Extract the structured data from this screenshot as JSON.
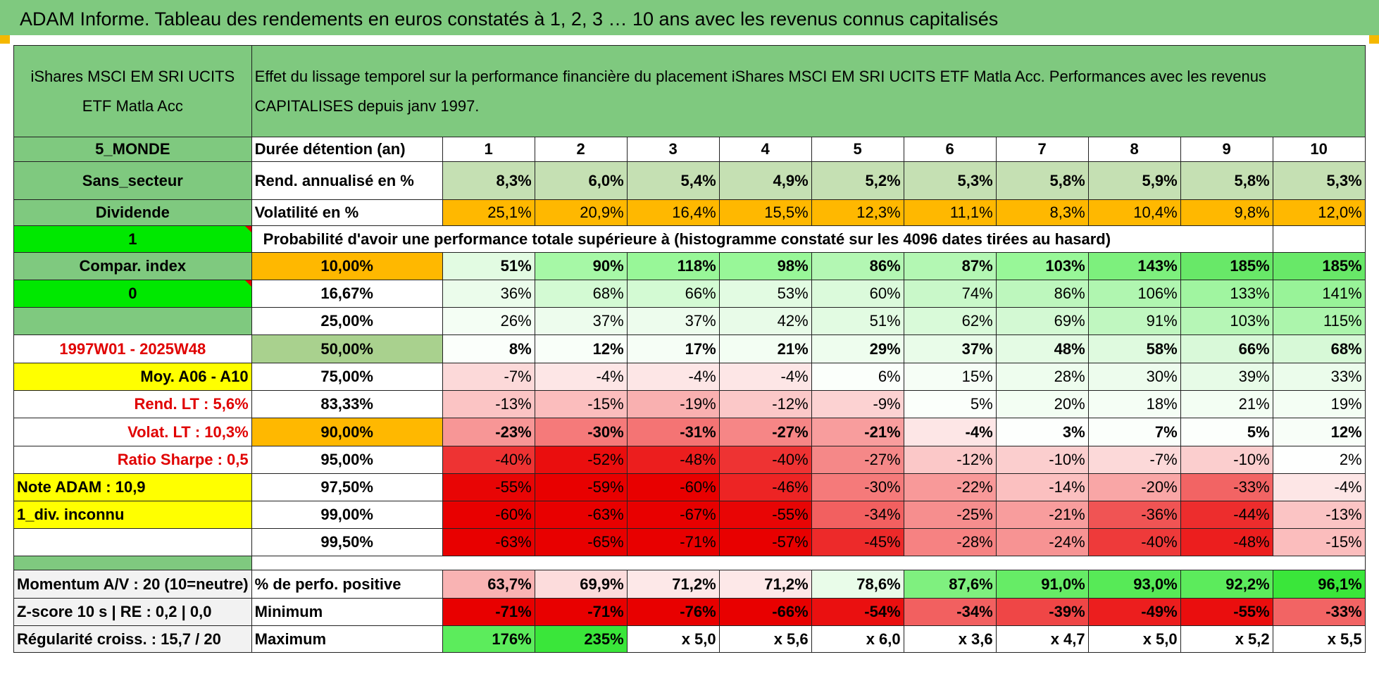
{
  "banner": "ADAM Informe. Tableau des rendements en euros constatés à 1, 2, 3 … 10 ans avec les revenus connus capitalisés",
  "fund_title": "iShares MSCI EM SRI UCITS ETF Matla Acc",
  "description": "Effet du lissage temporel sur la performance financière du placement iShares MSCI EM SRI UCITS ETF Matla Acc. Performances avec les revenus CAPITALISES depuis janv 1997.",
  "left": {
    "zone": "5_MONDE",
    "secteur": "Sans_secteur",
    "dividende": "Dividende",
    "div_value": "1",
    "compar": "Compar. index",
    "compar_value": "0",
    "period": "1997W01 - 2025W48",
    "moy": "Moy. A06 - A10",
    "rend_lt": "Rend. LT :    5,6%",
    "volat_lt": "Volat. LT :    10,3%",
    "sharpe": "Ratio Sharpe :    0,5",
    "note": "Note ADAM : 10,9",
    "div_inconnu": "1_div. inconnu",
    "momentum": "Momentum A/V : 20 (10=neutre)",
    "zscore": "Z-score 10 s | RE : 0,2 | 0,0",
    "regularite": "Régularité croiss. : 15,7 / 20"
  },
  "labels": {
    "duree": "Durée détention (an)",
    "rend": "Rend. annualisé en %",
    "vol": "Volatilité en %",
    "proba": "Probabilité d'avoir une performance totale supérieure à (histogramme constaté sur les 4096 dates tirées au hasard)",
    "positive": "% de perfo. positive",
    "minimum": "Minimum",
    "maximum": "Maximum"
  },
  "years": [
    "1",
    "2",
    "3",
    "4",
    "5",
    "6",
    "7",
    "8",
    "9",
    "10"
  ],
  "rend": [
    "8,3%",
    "6,0%",
    "5,4%",
    "4,9%",
    "5,2%",
    "5,3%",
    "5,8%",
    "5,9%",
    "5,8%",
    "5,3%"
  ],
  "vol": [
    "25,1%",
    "20,9%",
    "16,4%",
    "15,5%",
    "12,3%",
    "11,1%",
    "8,3%",
    "10,4%",
    "9,8%",
    "12,0%"
  ],
  "vol_colors": [
    "#ffb800",
    "#ffb800",
    "#ffb800",
    "#ffb800",
    "#ffb800",
    "#ffb800",
    "#ffb800",
    "#ffb800",
    "#ffb800",
    "#ffb800"
  ],
  "quantiles": [
    {
      "label": "10,00%",
      "values": [
        "51%",
        "90%",
        "118%",
        "98%",
        "86%",
        "87%",
        "103%",
        "143%",
        "185%",
        "185%"
      ],
      "colors": [
        "#e2fbe2",
        "#a6f8a6",
        "#98f798",
        "#98f798",
        "#b3f7b3",
        "#b3f7b3",
        "#98f798",
        "#7df07d",
        "#68e868",
        "#68e868"
      ]
    },
    {
      "label": "16,67%",
      "values": [
        "36%",
        "68%",
        "66%",
        "53%",
        "60%",
        "74%",
        "86%",
        "106%",
        "133%",
        "141%"
      ],
      "colors": [
        "#ebfceb",
        "#d3fad3",
        "#d3fad3",
        "#e2fbe2",
        "#dbfadb",
        "#c9f8c9",
        "#bdf7bd",
        "#b0f6b0",
        "#a0f5a0",
        "#98f398"
      ]
    },
    {
      "label": "25,00%",
      "values": [
        "26%",
        "37%",
        "37%",
        "42%",
        "51%",
        "62%",
        "69%",
        "91%",
        "103%",
        "115%"
      ],
      "colors": [
        "#f4fef4",
        "#edfced",
        "#edfced",
        "#e8fbe8",
        "#e2fbe2",
        "#d9fad9",
        "#d3f9d3",
        "#c0f7c0",
        "#b6f6b6",
        "#acf5ac"
      ]
    },
    {
      "label": "50,00%",
      "values": [
        "8%",
        "12%",
        "17%",
        "21%",
        "29%",
        "37%",
        "48%",
        "58%",
        "66%",
        "68%"
      ],
      "colors": [
        "#fbfffb",
        "#f9fff9",
        "#f6fef6",
        "#f3fef3",
        "#eefdee",
        "#e9fce9",
        "#e4fbe4",
        "#dffadf",
        "#d9f9d9",
        "#d7f9d7"
      ]
    },
    {
      "label": "75,00%",
      "values": [
        "-7%",
        "-4%",
        "-4%",
        "-4%",
        "6%",
        "15%",
        "28%",
        "30%",
        "39%",
        "33%"
      ],
      "colors": [
        "#fcd9d9",
        "#fde6e6",
        "#fde6e6",
        "#fde6e6",
        "#fbfffb",
        "#f6fef6",
        "#eefdee",
        "#edfced",
        "#e7fbe7",
        "#ebfceb"
      ]
    },
    {
      "label": "83,33%",
      "values": [
        "-13%",
        "-15%",
        "-19%",
        "-12%",
        "-9%",
        "5%",
        "20%",
        "18%",
        "21%",
        "19%"
      ],
      "colors": [
        "#fbc4c4",
        "#fbbdbd",
        "#f9b0b0",
        "#fbc8c8",
        "#fcd2d2",
        "#fbfffb",
        "#f3fef3",
        "#f5fef5",
        "#f3fef3",
        "#f4fef4"
      ]
    },
    {
      "label": "90,00%",
      "values": [
        "-23%",
        "-30%",
        "-31%",
        "-27%",
        "-21%",
        "-4%",
        "3%",
        "7%",
        "5%",
        "12%"
      ],
      "colors": [
        "#f79696",
        "#f57a7a",
        "#f47474",
        "#f68686",
        "#f89d9d",
        "#fde6e6",
        "#fdfffd",
        "#fbfffb",
        "#fcfffc",
        "#f8fef8"
      ]
    },
    {
      "label": "95,00%",
      "values": [
        "-40%",
        "-52%",
        "-48%",
        "-40%",
        "-27%",
        "-12%",
        "-10%",
        "-7%",
        "-10%",
        "2%"
      ],
      "colors": [
        "#ee3333",
        "#ea0e0e",
        "#ec1e1e",
        "#ee3333",
        "#f58888",
        "#fbc8c8",
        "#fbcece",
        "#fcd9d9",
        "#fbcece",
        "#fefffe"
      ]
    },
    {
      "label": "97,50%",
      "values": [
        "-55%",
        "-59%",
        "-60%",
        "-46%",
        "-30%",
        "-22%",
        "-14%",
        "-20%",
        "-33%",
        "-4%"
      ],
      "colors": [
        "#e80505",
        "#e80000",
        "#e80000",
        "#ed2424",
        "#f57a7a",
        "#f89999",
        "#fbc0c0",
        "#f9a6a6",
        "#f26464",
        "#fde6e6"
      ]
    },
    {
      "label": "99,00%",
      "values": [
        "-60%",
        "-63%",
        "-67%",
        "-55%",
        "-34%",
        "-25%",
        "-21%",
        "-36%",
        "-44%",
        "-13%"
      ],
      "colors": [
        "#e80000",
        "#e80000",
        "#e80000",
        "#e80505",
        "#f26060",
        "#f68e8e",
        "#f89d9d",
        "#f05454",
        "#ed2d2d",
        "#fbc4c4"
      ]
    },
    {
      "label": "99,50%",
      "values": [
        "-63%",
        "-65%",
        "-71%",
        "-57%",
        "-45%",
        "-28%",
        "-24%",
        "-40%",
        "-48%",
        "-15%"
      ],
      "colors": [
        "#e80000",
        "#e80000",
        "#e80000",
        "#e80000",
        "#ed2a2a",
        "#f68282",
        "#f79393",
        "#ee3a3a",
        "#ec1e1e",
        "#fbbdbd"
      ]
    }
  ],
  "positive": [
    "63,7%",
    "69,9%",
    "71,2%",
    "71,2%",
    "78,6%",
    "87,6%",
    "91,0%",
    "93,0%",
    "92,2%",
    "96,1%"
  ],
  "positive_colors": [
    "#f9b3b3",
    "#fcdcdc",
    "#fde8e8",
    "#fde8e8",
    "#e9fce9",
    "#7ff07f",
    "#66ec66",
    "#57ea57",
    "#5ceb5c",
    "#3ae63a"
  ],
  "minimum": [
    "-71%",
    "-71%",
    "-76%",
    "-66%",
    "-54%",
    "-34%",
    "-39%",
    "-49%",
    "-55%",
    "-33%"
  ],
  "minimum_colors": [
    "#e80000",
    "#e80000",
    "#e80000",
    "#e80000",
    "#ea1010",
    "#f26060",
    "#ef4646",
    "#ec1e1e",
    "#ea0e0e",
    "#f26464"
  ],
  "maximum": [
    "176%",
    "235%",
    "x 5,0",
    "x 5,6",
    "x 6,0",
    "x 3,6",
    "x 4,7",
    "x 5,0",
    "x 5,2",
    "x 5,5"
  ],
  "maximum_colors": [
    "#5cec5c",
    "#3ae63a",
    "#ffffff",
    "#ffffff",
    "#ffffff",
    "#ffffff",
    "#ffffff",
    "#ffffff",
    "#ffffff",
    "#ffffff"
  ],
  "colors": {
    "header_green": "#7fc97f",
    "bright_green": "#00e800",
    "orange": "#ffb800",
    "yellow": "#ffff00",
    "red_text": "#e00000"
  }
}
